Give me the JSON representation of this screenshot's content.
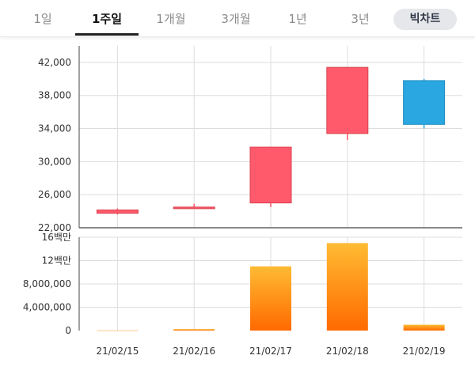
{
  "tabs": [
    {
      "label": "1일",
      "active": false
    },
    {
      "label": "1주일",
      "active": true
    },
    {
      "label": "1개월",
      "active": false
    },
    {
      "label": "3개월",
      "active": false
    },
    {
      "label": "1년",
      "active": false
    },
    {
      "label": "3년",
      "active": false
    }
  ],
  "big_chart_label": "빅차트",
  "colors": {
    "up": "#ff5a6b",
    "down": "#2aa7e1",
    "volume_top": "#ffbb33",
    "volume_bottom": "#ff6a00",
    "grid": "#dddddd",
    "axis": "#444444"
  },
  "chart_data": [
    {
      "type": "candlestick",
      "categories": [
        "21/02/15",
        "21/02/16",
        "21/02/17",
        "21/02/18",
        "21/02/19"
      ],
      "series": [
        {
          "open": 23750,
          "close": 24150,
          "high": 24350,
          "low": 23600,
          "direction": "up"
        },
        {
          "open": 24350,
          "close": 24500,
          "high": 24900,
          "low": 24300,
          "direction": "up"
        },
        {
          "open": 25000,
          "close": 31750,
          "high": 31750,
          "low": 24500,
          "direction": "up"
        },
        {
          "open": 33400,
          "close": 41400,
          "high": 41400,
          "low": 32600,
          "direction": "up"
        },
        {
          "open": 39800,
          "close": 34500,
          "high": 40000,
          "low": 34000,
          "direction": "down"
        }
      ],
      "y_ticks": [
        "42,000",
        "38,000",
        "34,000",
        "30,000",
        "26,000",
        "22,000"
      ],
      "ylim": [
        22000,
        44000
      ],
      "grid": true
    },
    {
      "type": "bar",
      "categories": [
        "21/02/15",
        "21/02/16",
        "21/02/17",
        "21/02/18",
        "21/02/19"
      ],
      "values": [
        30000,
        250000,
        11000000,
        15000000,
        1000000
      ],
      "y_ticks": [
        "16백만",
        "12백만",
        "8,000,000",
        "4,000,000",
        "0"
      ],
      "ylim": [
        0,
        16000000
      ],
      "grid": true
    }
  ]
}
